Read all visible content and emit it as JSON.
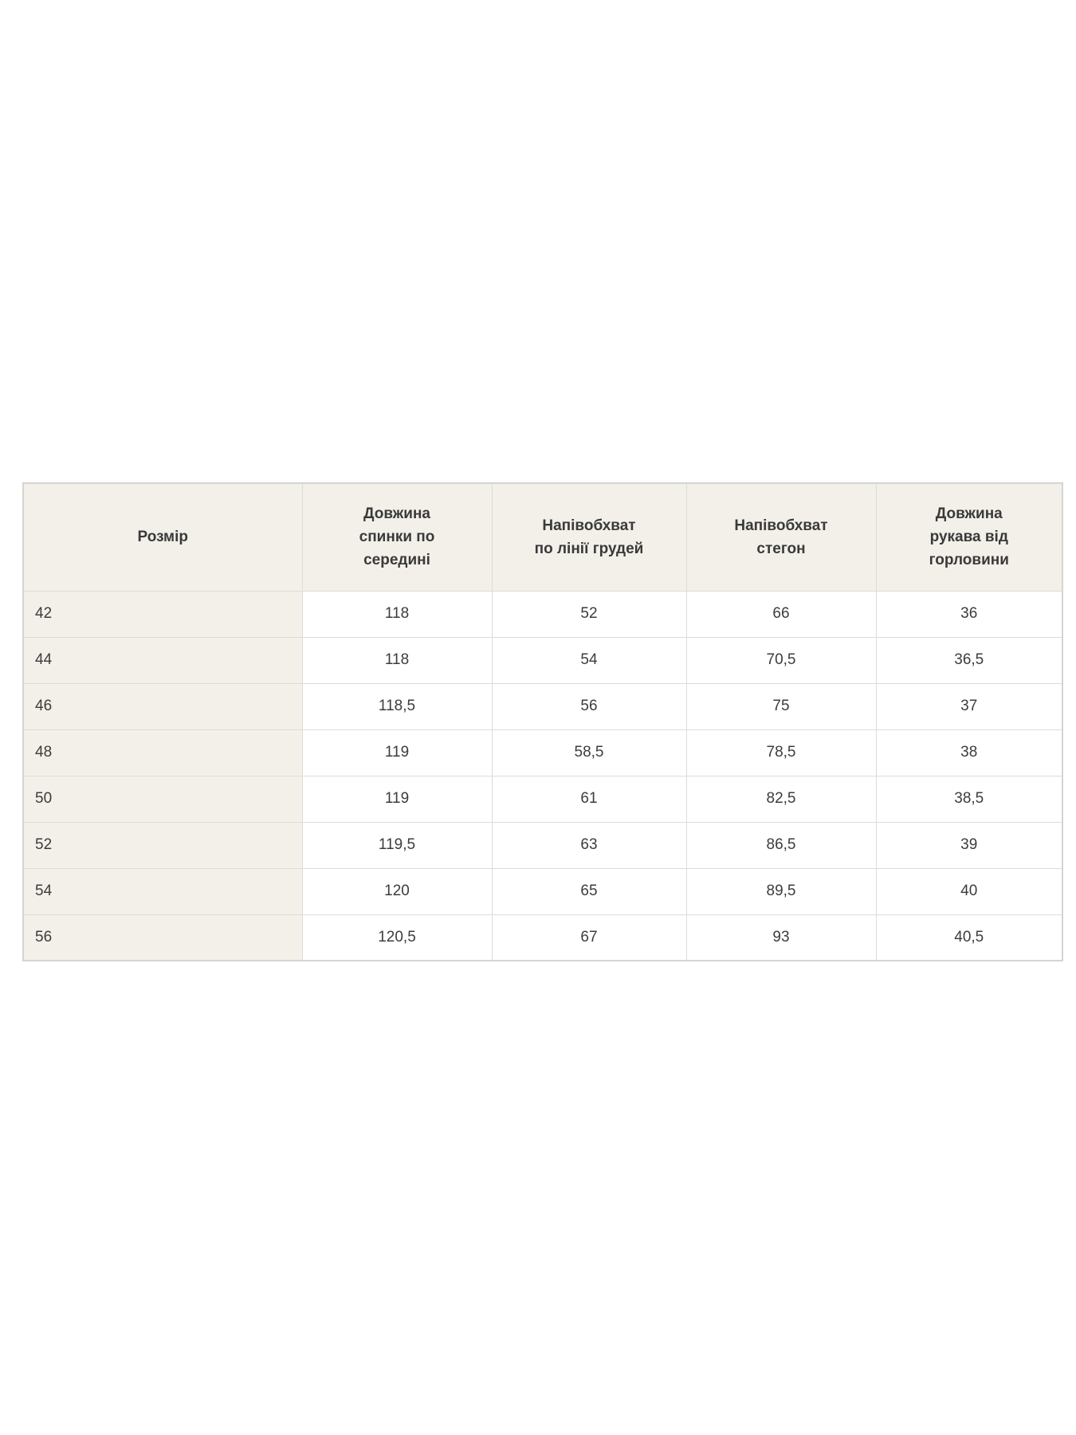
{
  "page": {
    "background_color": "#ffffff"
  },
  "colors": {
    "header_bg": "#f2f0e9",
    "first_column_bg": "#f2f0e9",
    "cell_bg": "#ffffff",
    "border": "#dcdcd6",
    "outer_border": "#d5d5d0",
    "text": "#3c3c3c"
  },
  "size_chart": {
    "columns": [
      "Розмір",
      "Довжина\nспинки по\nсередині",
      "Напівобхват\nпо лінії грудей",
      "Напівобхват\nстегон",
      "Довжина\nрукава від\nгорловини"
    ],
    "rows": [
      [
        "42",
        "118",
        "52",
        "66",
        "36"
      ],
      [
        "44",
        "118",
        "54",
        "70,5",
        "36,5"
      ],
      [
        "46",
        "118,5",
        "56",
        "75",
        "37"
      ],
      [
        "48",
        "119",
        "58,5",
        "78,5",
        "38"
      ],
      [
        "50",
        "119",
        "61",
        "82,5",
        "38,5"
      ],
      [
        "52",
        "119,5",
        "63",
        "86,5",
        "39"
      ],
      [
        "54",
        "120",
        "65",
        "89,5",
        "40"
      ],
      [
        "56",
        "120,5",
        "67",
        "93",
        "40,5"
      ]
    ]
  }
}
